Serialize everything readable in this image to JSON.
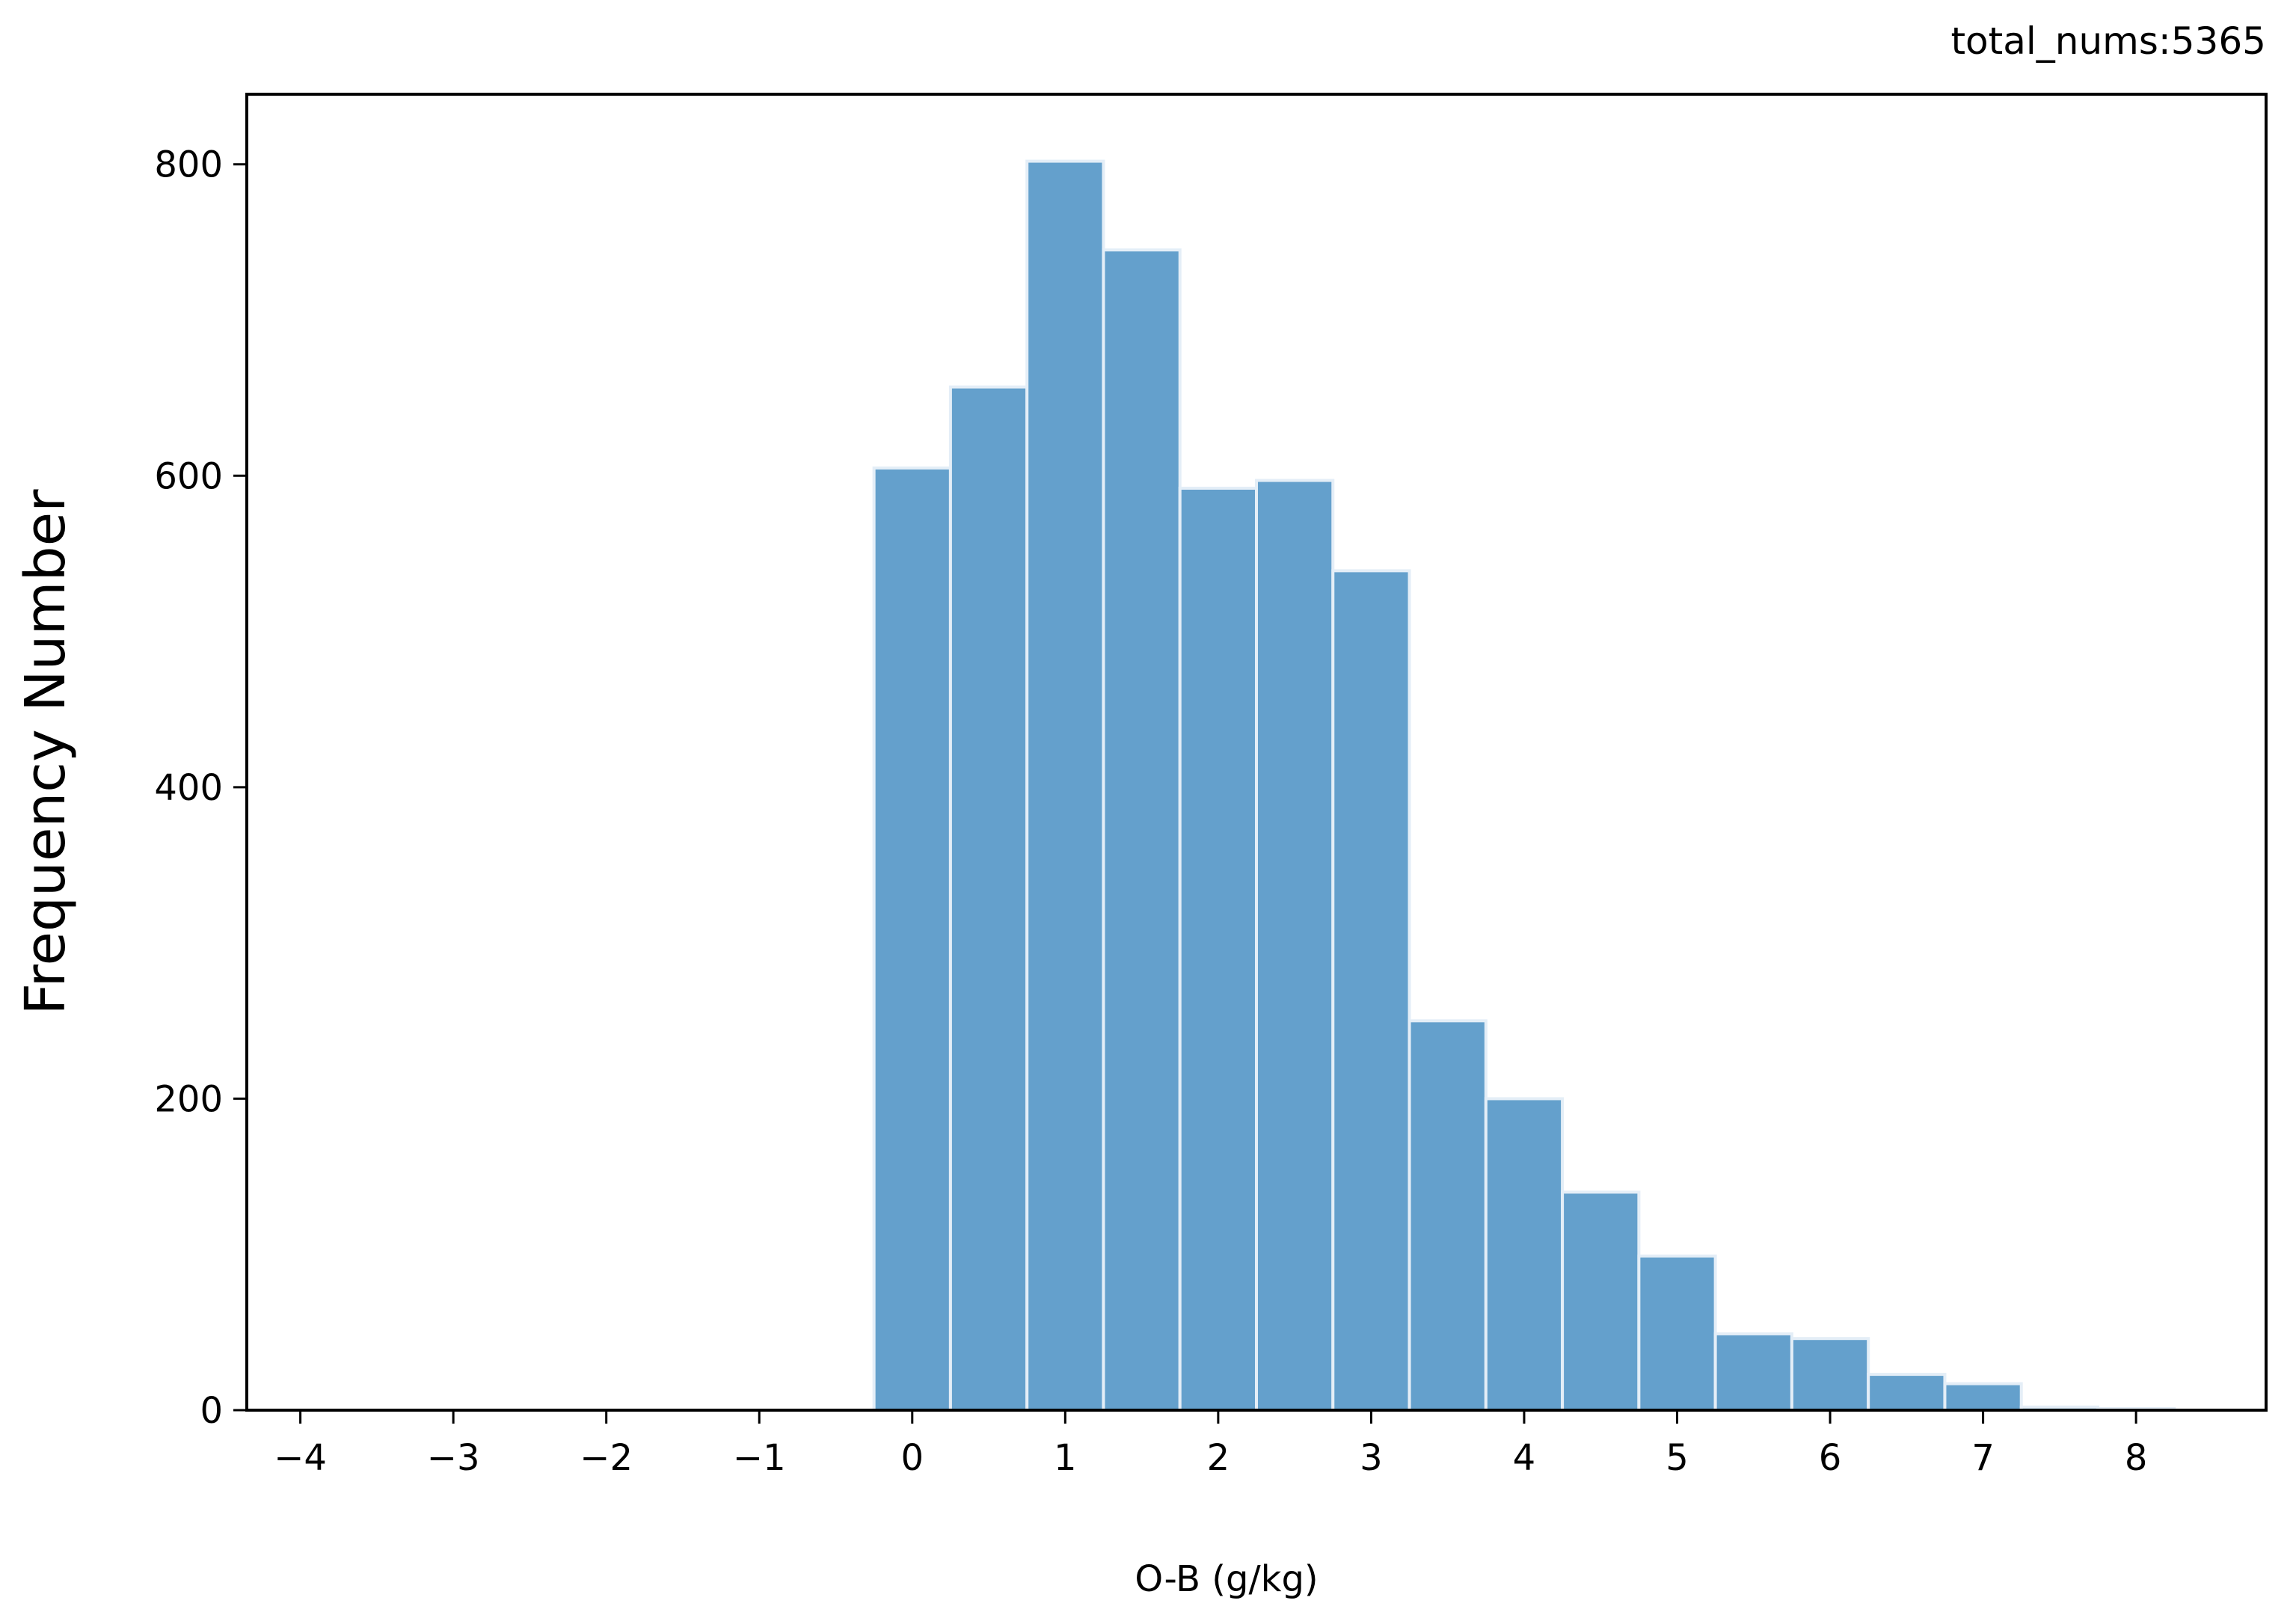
{
  "chart_data": {
    "type": "bar",
    "histogram": true,
    "annotation": "total_nums:5365",
    "xlabel": "O-B (g/kg)",
    "ylabel": "Frequency Number",
    "xlim": [
      -4.35,
      8.85
    ],
    "ylim": [
      0,
      845
    ],
    "x_ticks": [
      -4,
      -3,
      -2,
      -1,
      0,
      1,
      2,
      3,
      4,
      5,
      6,
      7,
      8
    ],
    "x_tick_labels": [
      "−4",
      "−3",
      "−2",
      "−1",
      "0",
      "1",
      "2",
      "3",
      "4",
      "5",
      "6",
      "7",
      "8"
    ],
    "y_ticks": [
      0,
      200,
      400,
      600,
      800
    ],
    "y_tick_labels": [
      "0",
      "200",
      "400",
      "600",
      "800"
    ],
    "bin_width": 0.5,
    "bins": [
      {
        "start": -4.25,
        "value": 0
      },
      {
        "start": -3.75,
        "value": 0
      },
      {
        "start": -3.25,
        "value": 0
      },
      {
        "start": -2.75,
        "value": 0
      },
      {
        "start": -2.25,
        "value": 0
      },
      {
        "start": -1.75,
        "value": 0
      },
      {
        "start": -1.25,
        "value": 0
      },
      {
        "start": -0.75,
        "value": 0
      },
      {
        "start": -0.25,
        "value": 605
      },
      {
        "start": 0.25,
        "value": 657
      },
      {
        "start": 0.75,
        "value": 802
      },
      {
        "start": 1.25,
        "value": 745
      },
      {
        "start": 1.75,
        "value": 592
      },
      {
        "start": 2.25,
        "value": 597
      },
      {
        "start": 2.75,
        "value": 539
      },
      {
        "start": 3.25,
        "value": 250
      },
      {
        "start": 3.75,
        "value": 200
      },
      {
        "start": 4.25,
        "value": 140
      },
      {
        "start": 4.75,
        "value": 99
      },
      {
        "start": 5.25,
        "value": 49
      },
      {
        "start": 5.75,
        "value": 46
      },
      {
        "start": 6.25,
        "value": 23
      },
      {
        "start": 6.75,
        "value": 17
      },
      {
        "start": 7.25,
        "value": 2
      },
      {
        "start": 7.75,
        "value": 1
      }
    ],
    "grid": false,
    "colors": {
      "bar": "#64a0cc",
      "bar_edge": "#e4eef7",
      "axes": "#000000"
    }
  }
}
